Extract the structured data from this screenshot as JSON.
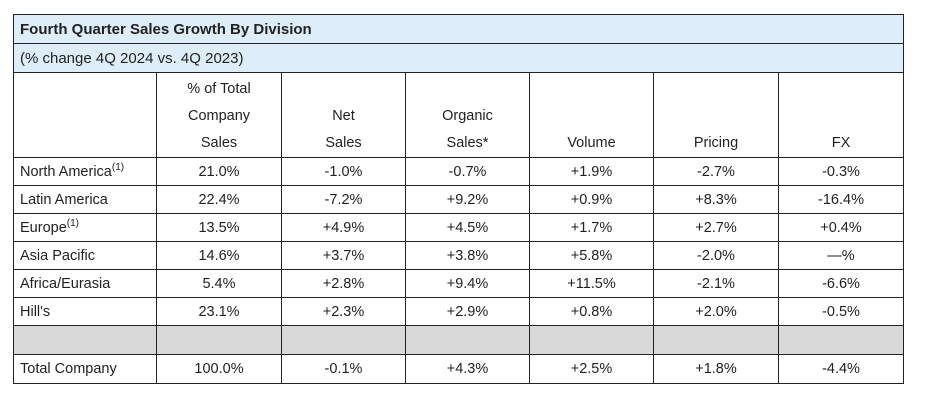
{
  "title": "Fourth Quarter Sales Growth By Division",
  "subtitle": "(% change 4Q 2024 vs. 4Q 2023)",
  "columns": [
    [
      "% of Total",
      "Company",
      "Sales"
    ],
    [
      "Net",
      "Sales"
    ],
    [
      "Organic",
      "Sales*"
    ],
    [
      "Volume"
    ],
    [
      "Pricing"
    ],
    [
      "FX"
    ]
  ],
  "rows": [
    {
      "label": "North America",
      "sup": "(1)",
      "values": [
        "21.0%",
        "-1.0%",
        "-0.7%",
        "+1.9%",
        "-2.7%",
        "-0.3%"
      ]
    },
    {
      "label": "Latin America",
      "sup": "",
      "values": [
        "22.4%",
        "-7.2%",
        "+9.2%",
        "+0.9%",
        "+8.3%",
        "-16.4%"
      ]
    },
    {
      "label": "Europe",
      "sup": "(1)",
      "values": [
        "13.5%",
        "+4.9%",
        "+4.5%",
        "+1.7%",
        "+2.7%",
        "+0.4%"
      ]
    },
    {
      "label": "Asia Pacific",
      "sup": "",
      "values": [
        "14.6%",
        "+3.7%",
        "+3.8%",
        "+5.8%",
        "-2.0%",
        "—%"
      ]
    },
    {
      "label": "Africa/Eurasia",
      "sup": "",
      "values": [
        "5.4%",
        "+2.8%",
        "+9.4%",
        "+11.5%",
        "-2.1%",
        "-6.6%"
      ]
    },
    {
      "label": "Hill's",
      "sup": "",
      "values": [
        "23.1%",
        "+2.3%",
        "+2.9%",
        "+0.8%",
        "+2.0%",
        "-0.5%"
      ]
    }
  ],
  "total": {
    "label": "Total Company",
    "values": [
      "100.0%",
      "-0.1%",
      "+4.3%",
      "+2.5%",
      "+1.8%",
      "-4.4%"
    ]
  },
  "colors": {
    "title_bg": "#ddeefa",
    "spacer_bg": "#d9d9d9",
    "border": "#222222"
  }
}
